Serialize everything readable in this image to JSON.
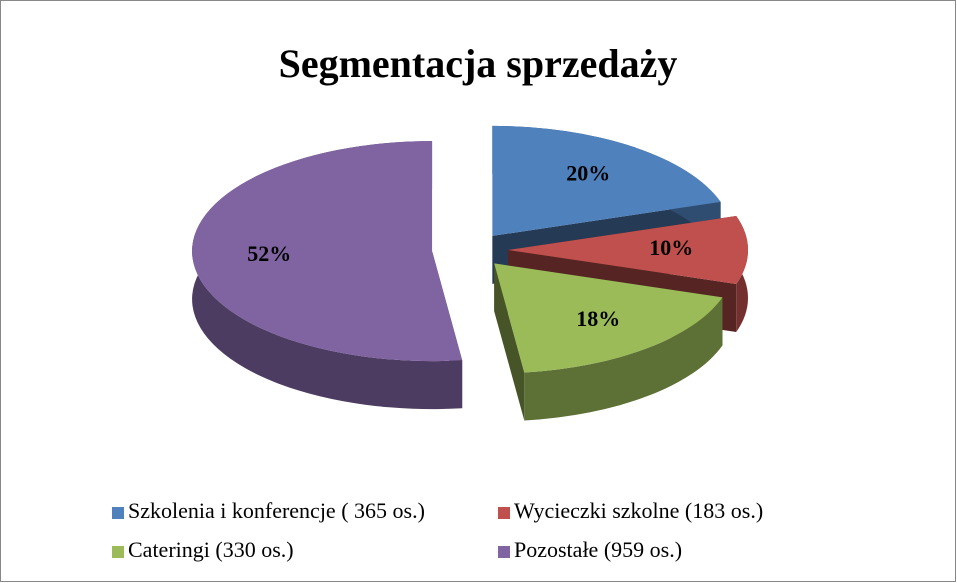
{
  "chart_data": {
    "type": "pie",
    "title": "Segmentacja sprzedaży",
    "categories": [
      "Szkolenia i konferencje ( 365 os.)",
      "Wycieczki szkolne (183 os.)",
      "Cateringi (330 os.)",
      "Pozostałe (959 os.)"
    ],
    "values": [
      20,
      10,
      18,
      52
    ],
    "value_labels": [
      "20%",
      "10%",
      "18%",
      "52%"
    ],
    "colors": [
      "#4f81bd",
      "#c0504d",
      "#9bbb59",
      "#8064a2"
    ],
    "legend": "bottom"
  }
}
